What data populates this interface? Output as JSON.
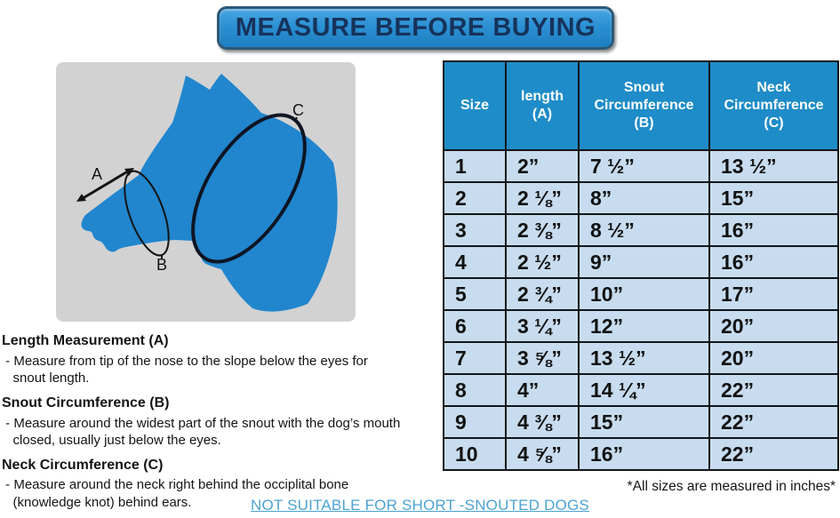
{
  "banner": {
    "title": "MEASURE BEFORE BUYING"
  },
  "diagram": {
    "labels": {
      "a": "A",
      "b": "B",
      "c": "C"
    }
  },
  "table": {
    "headers": [
      "Size",
      "length\n(A)",
      "Snout\nCircumference\n(B)",
      "Neck\nCircumference\n(C)"
    ],
    "col_keys": [
      "size",
      "length-a",
      "snout-circumference-b",
      "neck-circumference-c"
    ],
    "rows": [
      [
        "1",
        "2”",
        "7 ½”",
        "13 ½”"
      ],
      [
        "2",
        "2 ⅛”",
        "8”",
        "15”"
      ],
      [
        "3",
        "2 ⅜”",
        "8 ½”",
        "16”"
      ],
      [
        "4",
        "2 ½”",
        "9”",
        "16”"
      ],
      [
        "5",
        "2 ¾”",
        "10”",
        "17”"
      ],
      [
        "6",
        "3 ¼”",
        "12”",
        "20”"
      ],
      [
        "7",
        "3 ⅝”",
        "13 ½”",
        "20”"
      ],
      [
        "8",
        "4”",
        "14 ¼”",
        "22”"
      ],
      [
        "9",
        "4 ⅜”",
        "15”",
        "22”"
      ],
      [
        "10",
        "4 ⅝”",
        "16”",
        "22”"
      ]
    ]
  },
  "measurement_notes": {
    "length": {
      "heading": "Length Measurement (A)",
      "body": " - Measure from tip of the nose to the slope below the eyes for\n   snout length."
    },
    "snout": {
      "heading": "Snout Circumference (B)",
      "body": " - Measure around the widest part of the snout with the dog’s mouth\n   closed, usually just below the eyes."
    },
    "neck": {
      "heading": "Neck Circumference (C)",
      "body": " - Measure around the neck right behind the occiplital bone\n   (knowledge knot) behind ears."
    }
  },
  "footnotes": {
    "sizes_note": "*All sizes are measured in inches*",
    "warning_link": "NOT SUITABLE FOR SHORT -SNOUTED DOGS"
  },
  "colors": {
    "header_blue": "#1e8cc8",
    "row_blue": "#c7dcee",
    "banner_blue": "#2b90d3",
    "banner_text": "#16335b",
    "dog_blue": "#2186ce",
    "image_background": "#d2d2d2",
    "link_blue": "#4ba3d4",
    "border_black": "#131518"
  }
}
